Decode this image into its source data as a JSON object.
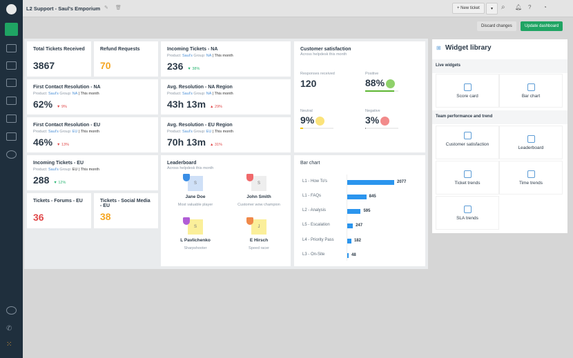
{
  "header": {
    "title": "L2 Support - Saul's Emporium",
    "new_ticket": "+ New ticket",
    "discard": "Discard changes",
    "update": "Update dashboard"
  },
  "colors": {
    "accent": "#1fa463",
    "sidebar": "#1f2f3d",
    "bar": "#2b95ee",
    "orange": "#f5a623",
    "red": "#e0494a"
  },
  "cards": {
    "total": {
      "title": "Total Tickets Received",
      "value": "3867"
    },
    "refund": {
      "title": "Refund Requests",
      "value": "70"
    },
    "inc_na": {
      "title": "Incoming Tickets - NA",
      "product": "Product:",
      "product_val": "Saul's",
      "group": "Group:",
      "group_val": "NA",
      "period": "| This month",
      "value": "236",
      "change": "▼ 38%"
    },
    "fcr_na": {
      "title": "First Contact Resolution - NA",
      "product": "Product:",
      "product_val": "Saul's",
      "group": "Group:",
      "group_val": "NA",
      "period": "| This month",
      "value": "62%",
      "change": "▼ 9%"
    },
    "avg_na": {
      "title": "Avg. Resolution - NA Region",
      "product": "Product:",
      "product_val": "Saul's",
      "group": "Group:",
      "group_val": "NA",
      "period": "| This month",
      "value": "43h 13m",
      "change": "▲ 29%"
    },
    "fcr_eu": {
      "title": "First Contact Resolution - EU",
      "product": "Product:",
      "product_val": "Saul's",
      "group": "Group:",
      "group_val": "EU",
      "period": "| This month",
      "value": "46%",
      "change": "▼ 13%"
    },
    "avg_eu": {
      "title": "Avg. Resolution - EU Region",
      "product": "Product:",
      "product_val": "Saul's",
      "group": "Group:",
      "group_val": "EU",
      "period": "| This month",
      "value": "70h 13m",
      "change": "▲ 31%"
    },
    "inc_eu": {
      "title": "Incoming Tickets - EU",
      "product": "Product:",
      "product_val": "Saul's",
      "group": "Group:",
      "group_val": "EU",
      "period": "| This month",
      "value": "288",
      "change": "▼ 12%"
    },
    "forums": {
      "title": "Tickets - Forums - EU",
      "value": "36"
    },
    "social": {
      "title": "Tickets - Social Media - EU",
      "value": "38"
    }
  },
  "csat": {
    "title": "Customer satisfaction",
    "subtitle": "Across helpdesk this month",
    "responses_label": "Responses received",
    "responses": "120",
    "positive_label": "Positive",
    "positive": "88%",
    "neutral_label": "Neutral",
    "neutral": "9%",
    "negative_label": "Negative",
    "negative": "3%",
    "positive_pct": 88,
    "neutral_pct": 9,
    "negative_pct": 3
  },
  "leaderboard": {
    "title": "Leaderboard",
    "subtitle": "Across helpdesk this month",
    "members": [
      {
        "name": "Jane Doe",
        "role": "Most valuable player",
        "initial": "S",
        "color": "#3a8ee6",
        "bg": "#cfe0f7"
      },
      {
        "name": "John Smith",
        "role": "Customer wow champion",
        "initial": "S",
        "color": "#f0696b",
        "bg": "#eeeeee"
      },
      {
        "name": "L Pavlichenko",
        "role": "Sharpshooter",
        "initial": "S",
        "color": "#b15ed6",
        "bg": "#fbef9a"
      },
      {
        "name": "E Hirsch",
        "role": "Speed racer",
        "initial": "J",
        "color": "#f0894a",
        "bg": "#fbef9a"
      }
    ]
  },
  "chart_data": {
    "type": "bar",
    "title": "Bar chart",
    "categories": [
      "L1 - How To's",
      "L1 - FAQs",
      "L2 - Analysis",
      "L5 - Escalation",
      "L4 - Priority Pass",
      "L3 - On-Site"
    ],
    "values": [
      2077,
      845,
      595,
      247,
      182,
      48
    ],
    "xlim": [
      0,
      2077
    ]
  },
  "library": {
    "title": "Widget library",
    "live": "Live widgets",
    "team": "Team performance and trend",
    "live_items": [
      "Score card",
      "Bar chart"
    ],
    "team_items": [
      "Customer satisfaction",
      "Leaderboard",
      "Ticket trends",
      "Time trends",
      "SLA trends"
    ]
  }
}
